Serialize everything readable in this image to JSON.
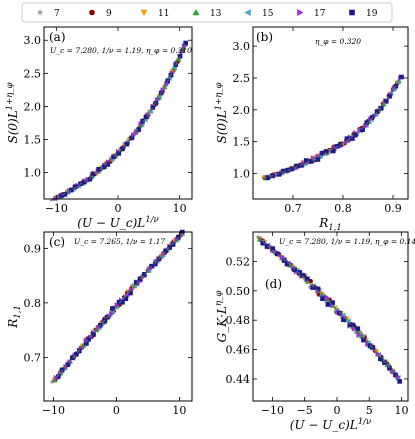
{
  "legend": {
    "entries": [
      {
        "label": "7",
        "color": "#999999",
        "marker": "star"
      },
      {
        "label": "9",
        "color": "#8b0000",
        "marker": "circle"
      },
      {
        "label": "11",
        "color": "#ff9900",
        "marker": "tri-down"
      },
      {
        "label": "13",
        "color": "#2e9e2e",
        "marker": "tri-up"
      },
      {
        "label": "15",
        "color": "#4aa3c8",
        "marker": "tri-left"
      },
      {
        "label": "17",
        "color": "#9a30e0",
        "marker": "tri-right"
      },
      {
        "label": "19",
        "color": "#1a1a8c",
        "marker": "square"
      }
    ]
  },
  "chart_data": [
    {
      "type": "scatter",
      "panel_label": "(a)",
      "annotation": "U_c = 7.280,  1/ν = 1.19,  η_φ = 0.310",
      "xlabel": "(U − U_c)L^{1/ν}",
      "ylabel": "S(0)L^{1+η_φ}",
      "xlim": [
        -12,
        12
      ],
      "ylim": [
        0.6,
        3.2
      ],
      "xticks": [
        -10,
        0,
        10
      ],
      "yticks": [
        1.0,
        1.5,
        2.0,
        2.5,
        3.0
      ],
      "ytick_labels": [
        "1.0",
        "1.5",
        "2.0",
        "2.5",
        "3.0"
      ],
      "curve": {
        "a": 1.3,
        "b": 0.075,
        "c": 0.00025,
        "x_range": [
          -11,
          11
        ],
        "jitter": 0.02,
        "highlight_x": [
          -5,
          5
        ]
      }
    },
    {
      "type": "scatter",
      "panel_label": "(b)",
      "annotation": "η_φ = 0.320",
      "xlabel": "R_{1,1}",
      "ylabel": "S(0)L^{1+η_φ}",
      "xlim": [
        0.62,
        0.93
      ],
      "ylim": [
        0.6,
        3.3
      ],
      "xticks": [
        0.7,
        0.8,
        0.9
      ],
      "yticks": [
        1.0,
        1.5,
        2.0,
        2.5,
        3.0
      ],
      "ytick_labels": [
        "1.0",
        "1.5",
        "2.0",
        "2.5",
        "3.0"
      ],
      "curve": {
        "a": 1.43,
        "b": 4.6,
        "c": 55.0,
        "x0": 0.79,
        "x_range": [
          0.64,
          0.915
        ],
        "jitter": 0.03,
        "highlight_x": [
          0.72,
          0.86
        ]
      }
    },
    {
      "type": "scatter",
      "panel_label": "(c)",
      "annotation": "U_c = 7.265,  1/ν = 1.17",
      "xlabel": "",
      "ylabel": "R_{1,1}",
      "xlim": [
        -11.5,
        12
      ],
      "ylim": [
        0.62,
        0.93
      ],
      "xticks": [
        -10,
        0,
        10
      ],
      "yticks": [
        0.7,
        0.8,
        0.9
      ],
      "ytick_labels": [
        "0.7",
        "0.8",
        "0.9"
      ],
      "curve": {
        "a": 0.793,
        "b": 0.0133,
        "c": -4e-05,
        "x_range": [
          -10.2,
          10.5
        ],
        "jitter": 0.004,
        "highlight_x": [
          -5,
          5
        ]
      }
    },
    {
      "type": "scatter",
      "panel_label": "(d)",
      "annotation": "U_c = 7.280,  1/ν = 1.19,  η_φ = 0.141",
      "xlabel": "(U − U_c)L^{1/ν}",
      "ylabel": "G_K·L^{η_φ}",
      "xlim": [
        -13,
        11
      ],
      "ylim": [
        0.425,
        0.54
      ],
      "xticks": [
        -10,
        -5,
        0,
        5,
        10
      ],
      "yticks": [
        0.44,
        0.46,
        0.48,
        0.5,
        0.52
      ],
      "ytick_labels": [
        "0.44",
        "0.46",
        "0.48",
        "0.50",
        "0.52"
      ],
      "curve": {
        "a": 0.487,
        "b": -0.0045,
        "c": -4e-05,
        "x_range": [
          -12.3,
          9.6
        ],
        "jitter": 0.002,
        "highlight_x": [
          -5,
          5
        ]
      }
    }
  ]
}
